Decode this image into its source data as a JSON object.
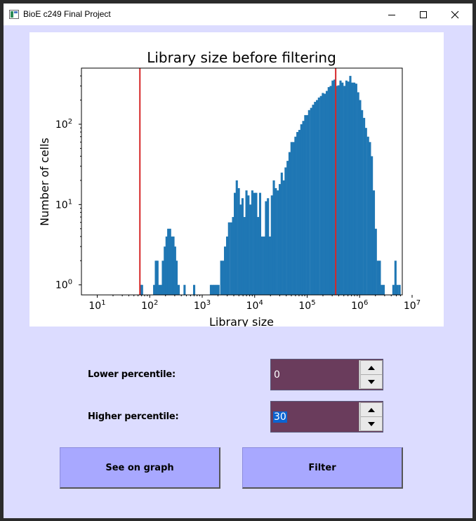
{
  "window": {
    "title": "BioE c249 Final Project"
  },
  "controls": {
    "lower_label": "Lower percentile:",
    "lower_value": "0",
    "higher_label": "Higher percentile:",
    "higher_value": "30",
    "see_button": "See on graph",
    "filter_button": "Filter"
  },
  "colors": {
    "bar": "#1f77b4",
    "threshold": "#d62728",
    "client_bg": "#dcdcff",
    "button_bg": "#a8a8ff",
    "spin_bg": "#6a3c5c"
  },
  "chart_data": {
    "type": "bar",
    "title": "Library size before filtering",
    "xlabel": "Library size",
    "ylabel": "Number of cells",
    "x_scale": "log",
    "y_scale": "log",
    "x_ticks": [
      "10^1",
      "10^2",
      "10^3",
      "10^4",
      "10^5",
      "10^6",
      "10^7"
    ],
    "y_ticks": [
      "10^0",
      "10^1",
      "10^2"
    ],
    "xlim": [
      5,
      2500000
    ],
    "ylim": [
      0.75,
      500
    ],
    "threshold_lines": [
      65,
      350000
    ],
    "histogram": [
      {
        "x": 64,
        "count": 1
      },
      {
        "x": 68,
        "count": 1
      },
      {
        "x": 116,
        "count": 1
      },
      {
        "x": 125,
        "count": 2
      },
      {
        "x": 134,
        "count": 2
      },
      {
        "x": 144,
        "count": 1
      },
      {
        "x": 156,
        "count": 1
      },
      {
        "x": 170,
        "count": 2
      },
      {
        "x": 185,
        "count": 3
      },
      {
        "x": 200,
        "count": 4
      },
      {
        "x": 215,
        "count": 5
      },
      {
        "x": 233,
        "count": 5
      },
      {
        "x": 253,
        "count": 4
      },
      {
        "x": 270,
        "count": 4
      },
      {
        "x": 290,
        "count": 3
      },
      {
        "x": 310,
        "count": 2
      },
      {
        "x": 340,
        "count": 1
      },
      {
        "x": 440,
        "count": 1
      },
      {
        "x": 670,
        "count": 1
      },
      {
        "x": 1400,
        "count": 1
      },
      {
        "x": 1520,
        "count": 1
      },
      {
        "x": 1650,
        "count": 1
      },
      {
        "x": 1790,
        "count": 1
      },
      {
        "x": 1950,
        "count": 1
      },
      {
        "x": 2200,
        "count": 2
      },
      {
        "x": 2400,
        "count": 2
      },
      {
        "x": 2600,
        "count": 3
      },
      {
        "x": 2850,
        "count": 4
      },
      {
        "x": 3100,
        "count": 6
      },
      {
        "x": 3400,
        "count": 6
      },
      {
        "x": 3700,
        "count": 7
      },
      {
        "x": 4000,
        "count": 14
      },
      {
        "x": 4350,
        "count": 20
      },
      {
        "x": 4750,
        "count": 16
      },
      {
        "x": 5150,
        "count": 10
      },
      {
        "x": 5600,
        "count": 12
      },
      {
        "x": 6100,
        "count": 7
      },
      {
        "x": 6650,
        "count": 15
      },
      {
        "x": 7250,
        "count": 13
      },
      {
        "x": 7900,
        "count": 10
      },
      {
        "x": 8600,
        "count": 15
      },
      {
        "x": 9400,
        "count": 14
      },
      {
        "x": 10200,
        "count": 14
      },
      {
        "x": 11100,
        "count": 7
      },
      {
        "x": 12100,
        "count": 14
      },
      {
        "x": 13200,
        "count": 4
      },
      {
        "x": 14400,
        "count": 4
      },
      {
        "x": 15700,
        "count": 11
      },
      {
        "x": 17100,
        "count": 12
      },
      {
        "x": 18600,
        "count": 4
      },
      {
        "x": 20300,
        "count": 13
      },
      {
        "x": 22100,
        "count": 20
      },
      {
        "x": 24100,
        "count": 16
      },
      {
        "x": 26300,
        "count": 15
      },
      {
        "x": 28700,
        "count": 18
      },
      {
        "x": 31300,
        "count": 25
      },
      {
        "x": 34100,
        "count": 20
      },
      {
        "x": 37100,
        "count": 29
      },
      {
        "x": 40500,
        "count": 35
      },
      {
        "x": 44100,
        "count": 45
      },
      {
        "x": 48100,
        "count": 60
      },
      {
        "x": 52400,
        "count": 60
      },
      {
        "x": 57100,
        "count": 70
      },
      {
        "x": 62200,
        "count": 80
      },
      {
        "x": 67900,
        "count": 85
      },
      {
        "x": 74000,
        "count": 100
      },
      {
        "x": 80600,
        "count": 110
      },
      {
        "x": 87900,
        "count": 130
      },
      {
        "x": 95800,
        "count": 130
      },
      {
        "x": 104000,
        "count": 150
      },
      {
        "x": 114000,
        "count": 160
      },
      {
        "x": 124000,
        "count": 175
      },
      {
        "x": 135000,
        "count": 190
      },
      {
        "x": 147000,
        "count": 200
      },
      {
        "x": 160000,
        "count": 215
      },
      {
        "x": 175000,
        "count": 225
      },
      {
        "x": 190000,
        "count": 245
      },
      {
        "x": 207000,
        "count": 240
      },
      {
        "x": 226000,
        "count": 260
      },
      {
        "x": 246000,
        "count": 290
      },
      {
        "x": 268000,
        "count": 300
      },
      {
        "x": 292000,
        "count": 350
      },
      {
        "x": 318000,
        "count": 360
      },
      {
        "x": 347000,
        "count": 300
      },
      {
        "x": 378000,
        "count": 305
      },
      {
        "x": 412000,
        "count": 350
      },
      {
        "x": 449000,
        "count": 330
      },
      {
        "x": 490000,
        "count": 300
      },
      {
        "x": 534000,
        "count": 350
      },
      {
        "x": 582000,
        "count": 340
      },
      {
        "x": 634000,
        "count": 400
      },
      {
        "x": 691000,
        "count": 330
      },
      {
        "x": 753000,
        "count": 330
      },
      {
        "x": 821000,
        "count": 320
      },
      {
        "x": 895000,
        "count": 250
      },
      {
        "x": 975000,
        "count": 200
      },
      {
        "x": 1060000,
        "count": 150
      },
      {
        "x": 1160000,
        "count": 120
      },
      {
        "x": 1260000,
        "count": 90
      },
      {
        "x": 1380000,
        "count": 70
      },
      {
        "x": 1500000,
        "count": 60
      },
      {
        "x": 1630000,
        "count": 40
      },
      {
        "x": 1780000,
        "count": 15
      },
      {
        "x": 1940000,
        "count": 5
      },
      {
        "x": 2120000,
        "count": 2
      },
      {
        "x": 2310000,
        "count": 2
      },
      {
        "x": 2520000,
        "count": 1
      },
      {
        "x": 2740000,
        "count": 1
      },
      {
        "x": 4200000,
        "count": 1
      },
      {
        "x": 4600000,
        "count": 2
      },
      {
        "x": 5000000,
        "count": 1
      },
      {
        "x": 5500000,
        "count": 1
      }
    ]
  }
}
